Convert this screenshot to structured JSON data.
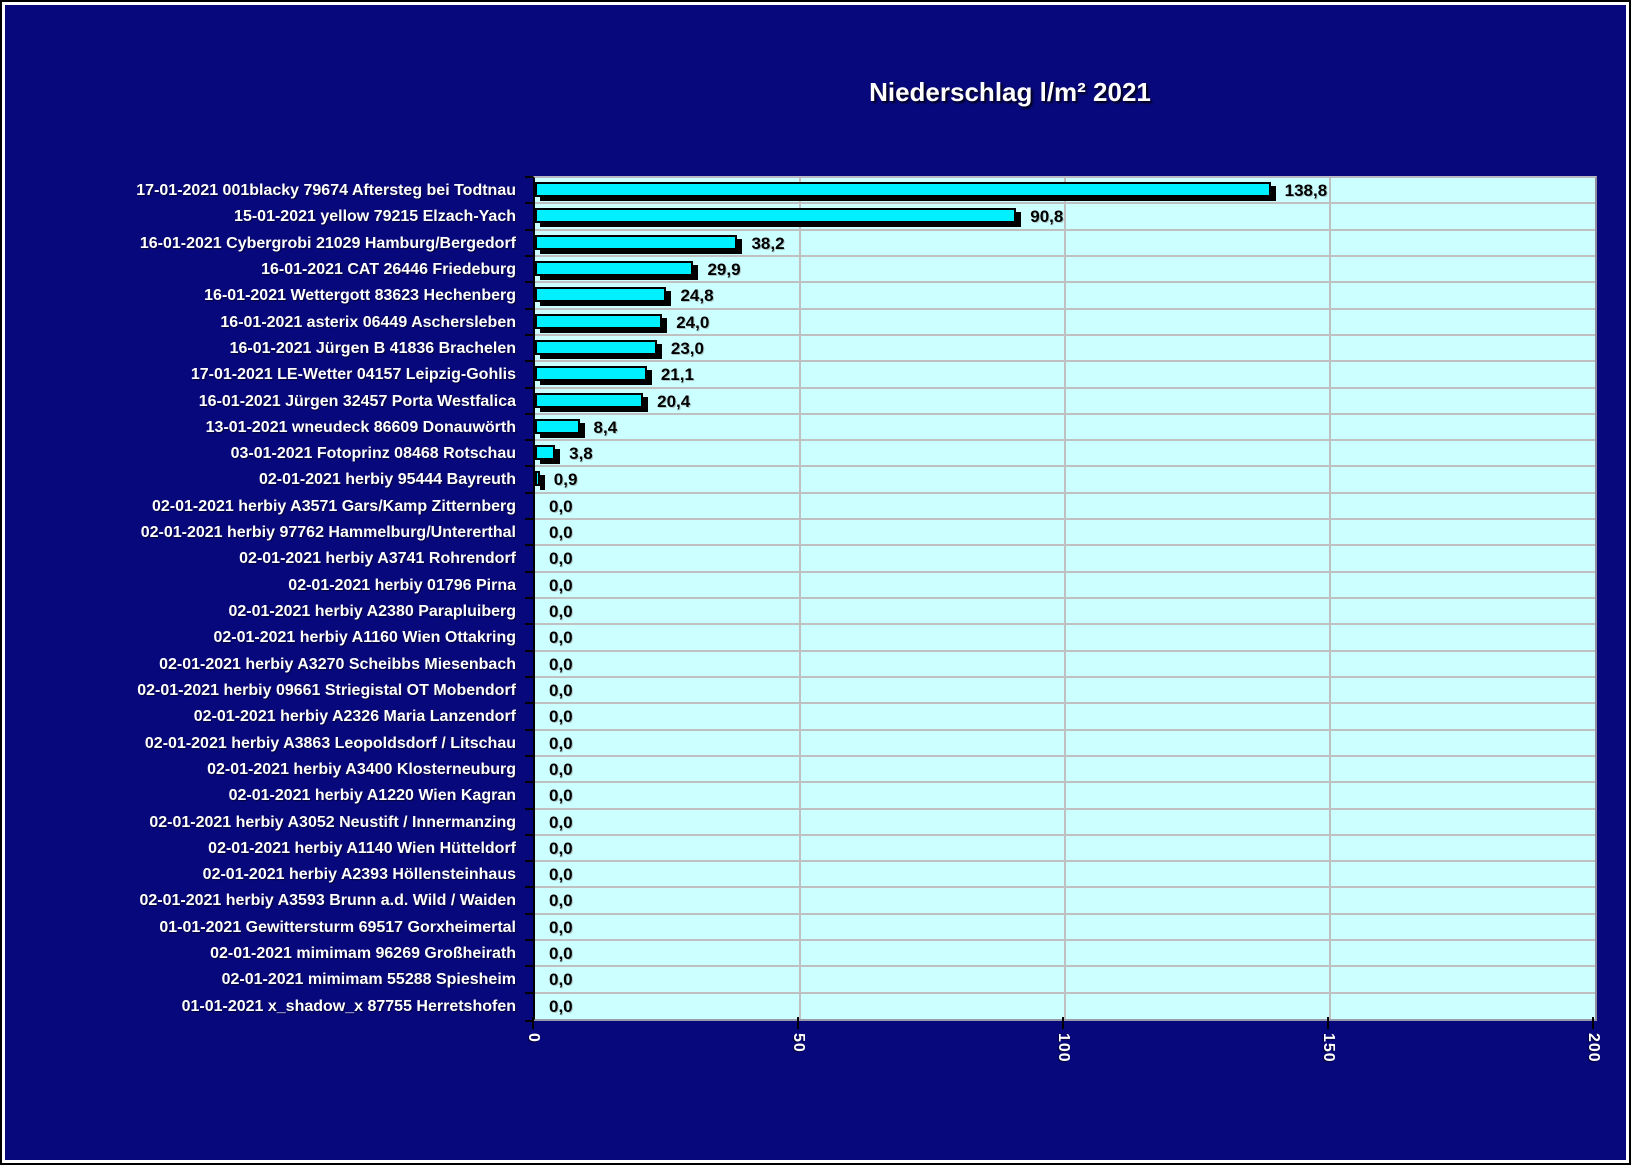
{
  "title": "Niederschlag l/m² 2021",
  "colors": {
    "background": "#08087d",
    "plot_background": "#ccffff",
    "bar_fill": "#00f0ff",
    "bar_border": "#000000",
    "bar_shadow": "#000000",
    "gridline": "#c0c0c0",
    "category_text": "#ffffff",
    "value_text": "#000000",
    "axis_line": "#000000"
  },
  "chart_data": {
    "type": "bar",
    "orientation": "horizontal",
    "title": "Niederschlag l/m² 2021",
    "xlabel": "",
    "ylabel": "",
    "xlim": [
      0,
      200
    ],
    "x_ticks": [
      0,
      50,
      100,
      150,
      200
    ],
    "x_tick_labels": [
      "0",
      "50",
      "100",
      "150",
      "200"
    ],
    "grid": true,
    "legend": false,
    "categories": [
      "17-01-2021 001blacky 79674 Aftersteg bei Todtnau",
      "15-01-2021 yellow 79215 Elzach-Yach",
      "16-01-2021 Cybergrobi 21029 Hamburg/Bergedorf",
      "16-01-2021 CAT 26446 Friedeburg",
      "16-01-2021 Wettergott 83623 Hechenberg",
      "16-01-2021 asterix 06449 Aschersleben",
      "16-01-2021 Jürgen B 41836 Brachelen",
      "17-01-2021 LE-Wetter 04157 Leipzig-Gohlis",
      "16-01-2021 Jürgen 32457 Porta Westfalica",
      "13-01-2021 wneudeck 86609 Donauwörth",
      "03-01-2021 Fotoprinz 08468 Rotschau",
      "02-01-2021 herbiy 95444 Bayreuth",
      "02-01-2021 herbiy A3571 Gars/Kamp Zitternberg",
      "02-01-2021 herbiy 97762 Hammelburg/Untererthal",
      "02-01-2021 herbiy A3741 Rohrendorf",
      "02-01-2021 herbiy 01796 Pirna",
      "02-01-2021 herbiy A2380 Parapluiberg",
      "02-01-2021 herbiy A1160 Wien Ottakring",
      "02-01-2021 herbiy A3270 Scheibbs Miesenbach",
      "02-01-2021 herbiy 09661 Striegistal OT Mobendorf",
      "02-01-2021 herbiy A2326 Maria Lanzendorf",
      "02-01-2021 herbiy A3863 Leopoldsdorf / Litschau",
      "02-01-2021 herbiy A3400 Klosterneuburg",
      "02-01-2021 herbiy A1220 Wien Kagran",
      "02-01-2021 herbiy A3052 Neustift / Innermanzing",
      "02-01-2021 herbiy A1140 Wien Hütteldorf",
      "02-01-2021 herbiy A2393 Höllensteinhaus",
      "02-01-2021 herbiy A3593 Brunn a.d. Wild / Waiden",
      "01-01-2021 Gewittersturm 69517 Gorxheimertal",
      "02-01-2021 mimimam 96269 Großheirath",
      "02-01-2021 mimimam 55288 Spiesheim",
      "01-01-2021 x_shadow_x 87755 Herretshofen"
    ],
    "values": [
      138.8,
      90.8,
      38.2,
      29.9,
      24.8,
      24.0,
      23.0,
      21.1,
      20.4,
      8.4,
      3.8,
      0.9,
      0.0,
      0.0,
      0.0,
      0.0,
      0.0,
      0.0,
      0.0,
      0.0,
      0.0,
      0.0,
      0.0,
      0.0,
      0.0,
      0.0,
      0.0,
      0.0,
      0.0,
      0.0,
      0.0,
      0.0
    ],
    "value_labels": [
      "138,8",
      "90,8",
      "38,2",
      "29,9",
      "24,8",
      "24,0",
      "23,0",
      "21,1",
      "20,4",
      "8,4",
      "3,8",
      "0,9",
      "0,0",
      "0,0",
      "0,0",
      "0,0",
      "0,0",
      "0,0",
      "0,0",
      "0,0",
      "0,0",
      "0,0",
      "0,0",
      "0,0",
      "0,0",
      "0,0",
      "0,0",
      "0,0",
      "0,0",
      "0,0",
      "0,0",
      "0,0"
    ]
  }
}
